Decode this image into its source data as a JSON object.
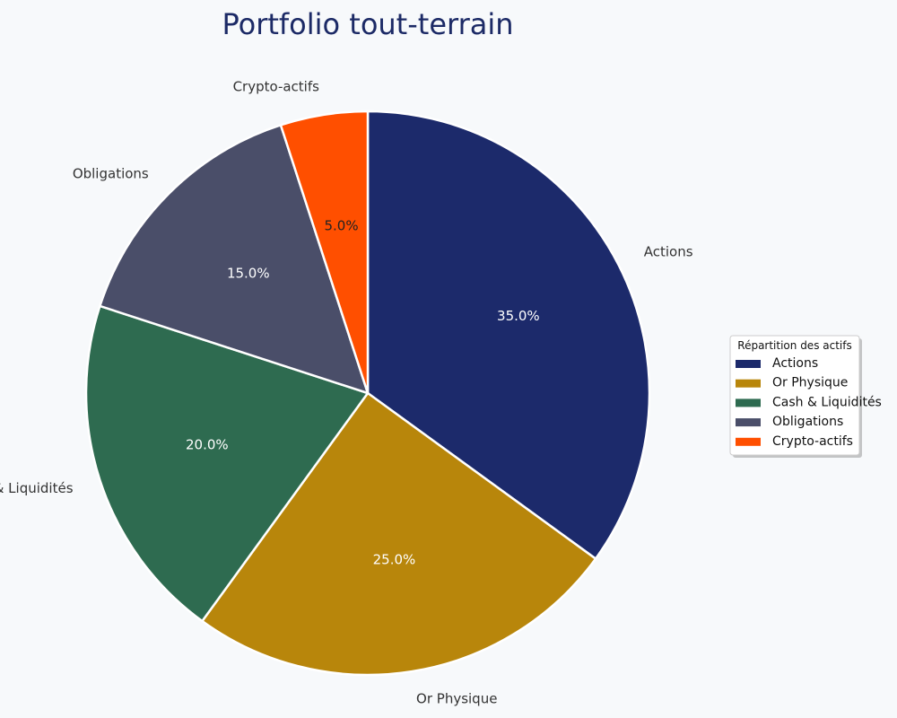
{
  "chart_data": {
    "type": "pie",
    "title": "Portfolio tout-terrain",
    "legend_title": "Répartition des actifs",
    "legend_position": "right",
    "start_angle_deg": 90,
    "direction": "clockwise",
    "slices": [
      {
        "label": "Actions",
        "value": 35.0,
        "pct_label": "35.0%",
        "color": "#1c2a6b",
        "pct_color": "#ffffff"
      },
      {
        "label": "Or Physique",
        "value": 25.0,
        "pct_label": "25.0%",
        "color": "#b8860b",
        "pct_color": "#ffffff"
      },
      {
        "label": "Cash & Liquidités",
        "value": 20.0,
        "pct_label": "20.0%",
        "color": "#2e6b50",
        "pct_color": "#ffffff"
      },
      {
        "label": "Obligations",
        "value": 15.0,
        "pct_label": "15.0%",
        "color": "#4a4e69",
        "pct_color": "#ffffff"
      },
      {
        "label": "Crypto-actifs",
        "value": 5.0,
        "pct_label": "5.0%",
        "color": "#ff4f00",
        "pct_color": "#222222"
      }
    ]
  }
}
